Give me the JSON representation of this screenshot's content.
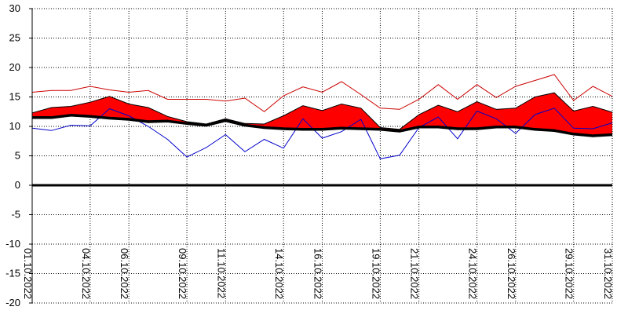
{
  "chart_data": {
    "type": "line",
    "title": "",
    "xlabel": "",
    "ylabel": "",
    "ylim": [
      -20,
      30
    ],
    "yticks": [
      30,
      25,
      20,
      15,
      10,
      5,
      0,
      -5,
      -10,
      -15,
      -20
    ],
    "grid": true,
    "legend": "none",
    "x": [
      "01.10.2022",
      "02.10.2022",
      "03.10.2022",
      "04.10.2022",
      "05.10.2022",
      "06.10.2022",
      "07.10.2022",
      "08.10.2022",
      "09.10.2022",
      "10.10.2022",
      "11.10.2022",
      "12.10.2022",
      "13.10.2022",
      "14.10.2022",
      "15.10.2022",
      "16.10.2022",
      "17.10.2022",
      "18.10.2022",
      "19.10.2022",
      "20.10.2022",
      "21.10.2022",
      "22.10.2022",
      "23.10.2022",
      "24.10.2022",
      "25.10.2022",
      "26.10.2022",
      "27.10.2022",
      "28.10.2022",
      "29.10.2022",
      "30.10.2022",
      "31.10.2022"
    ],
    "xtick_labels": [
      "01.10.2022",
      "04.10.2022",
      "06.10.2022",
      "09.10.2022",
      "11.10.2022",
      "14.10.2022",
      "16.10.2022",
      "19.10.2022",
      "21.10.2022",
      "24.10.2022",
      "26.10.2022",
      "29.10.2022",
      "31.10.2022"
    ],
    "series": [
      {
        "kind": "max-line",
        "color": "#cc0000",
        "values": [
          15.8,
          16.1,
          16.1,
          16.8,
          16.2,
          15.8,
          16.1,
          14.6,
          14.6,
          14.6,
          14.3,
          14.8,
          12.5,
          15.2,
          16.7,
          15.8,
          17.6,
          15.4,
          13.1,
          12.9,
          14.6,
          17.1,
          14.6,
          17.1,
          14.9,
          16.8,
          17.8,
          18.8,
          14.4,
          16.8,
          15.1
        ]
      },
      {
        "kind": "mean-band-upper",
        "color": "#ff0000",
        "values": [
          12.3,
          13.2,
          13.4,
          14.1,
          15.1,
          13.8,
          13.2,
          11.7,
          10.8,
          10.4,
          11.3,
          10.5,
          10.4,
          11.8,
          13.5,
          12.7,
          13.8,
          13.1,
          9.8,
          9.5,
          12.0,
          13.6,
          12.5,
          14.2,
          12.9,
          13.1,
          15.0,
          15.7,
          12.6,
          13.4,
          12.4
        ]
      },
      {
        "kind": "min-line",
        "color": "#0000cc",
        "values": [
          9.7,
          9.3,
          10.2,
          10.1,
          13.0,
          11.8,
          10.0,
          7.8,
          4.8,
          6.4,
          8.6,
          5.7,
          7.8,
          6.3,
          11.3,
          8.0,
          9.1,
          11.2,
          4.5,
          5.1,
          9.8,
          11.6,
          7.9,
          12.6,
          11.3,
          8.8,
          12.0,
          13.1,
          9.7,
          9.6,
          10.6
        ]
      },
      {
        "kind": "mean-band-lower",
        "color": "#000000",
        "values": [
          11.5,
          11.5,
          11.9,
          11.7,
          11.4,
          11.2,
          10.8,
          10.9,
          10.5,
          10.2,
          11.0,
          10.2,
          9.8,
          9.6,
          9.5,
          9.5,
          9.7,
          9.6,
          9.5,
          9.2,
          9.9,
          9.9,
          9.6,
          9.6,
          9.9,
          9.9,
          9.5,
          9.3,
          8.7,
          8.4,
          8.6
        ]
      }
    ],
    "zero_line": 0
  }
}
